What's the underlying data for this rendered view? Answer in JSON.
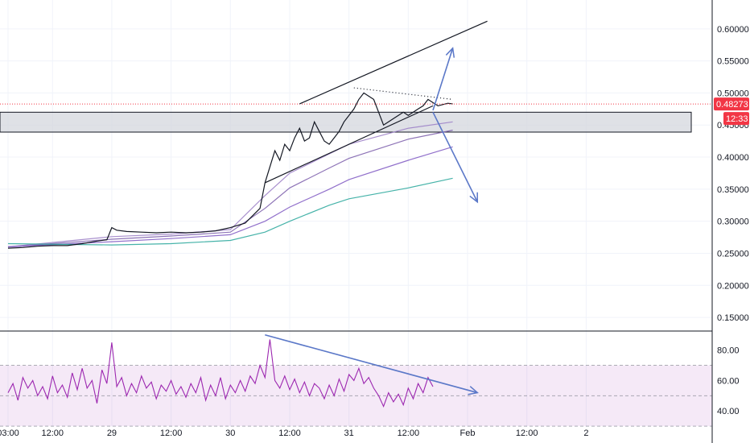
{
  "chart_data": [
    {
      "type": "line",
      "panel": "price",
      "title": "",
      "xlabel": "",
      "ylabel": "",
      "x_tick_labels": [
        "03:00",
        "12:00",
        "29",
        "12:00",
        "30",
        "12:00",
        "31",
        "12:00",
        "Feb",
        "12:00",
        "2"
      ],
      "y_tick_labels": [
        "0.15000",
        "0.20000",
        "0.25000",
        "0.30000",
        "0.35000",
        "0.40000",
        "0.45000",
        "0.50000",
        "0.55000",
        "0.60000"
      ],
      "ylim": [
        0.13,
        0.645
      ],
      "x_hours_from_first_tick": [
        0,
        9,
        21,
        33,
        45,
        57,
        69,
        81,
        93,
        105,
        117
      ],
      "current_price": {
        "value": 0.48273,
        "label": "0.48273",
        "countdown": "12:33",
        "color": "#f23645"
      },
      "zone": {
        "from": 0.439,
        "to": 0.47,
        "fill": "#d1d4dc"
      },
      "price_series": {
        "name": "",
        "color": "#131722",
        "x": [
          0,
          3,
          6,
          9,
          12,
          15,
          18,
          20,
          21,
          22,
          24,
          27,
          30,
          33,
          36,
          39,
          42,
          45,
          48,
          51,
          52,
          54,
          55,
          56,
          57,
          58,
          59,
          60,
          61,
          62,
          63,
          64,
          65,
          66,
          67,
          68,
          69,
          70,
          71,
          72,
          73,
          74,
          75,
          76,
          77,
          78,
          79,
          80,
          81,
          82,
          83,
          84,
          85,
          86,
          87,
          88,
          89,
          90
        ],
        "y": [
          0.258,
          0.259,
          0.261,
          0.262,
          0.262,
          0.265,
          0.269,
          0.271,
          0.29,
          0.286,
          0.284,
          0.283,
          0.282,
          0.283,
          0.282,
          0.283,
          0.285,
          0.29,
          0.297,
          0.32,
          0.36,
          0.41,
          0.395,
          0.42,
          0.41,
          0.43,
          0.445,
          0.425,
          0.43,
          0.455,
          0.44,
          0.425,
          0.42,
          0.43,
          0.44,
          0.455,
          0.465,
          0.475,
          0.49,
          0.5,
          0.495,
          0.49,
          0.47,
          0.45,
          0.455,
          0.46,
          0.465,
          0.47,
          0.465,
          0.47,
          0.475,
          0.48,
          0.49,
          0.485,
          0.48,
          0.482,
          0.484,
          0.483
        ]
      },
      "moving_averages": [
        {
          "name": "",
          "color": "#7a5caa",
          "x": [
            0,
            21,
            33,
            45,
            52,
            57,
            65,
            69,
            81,
            90
          ],
          "y": [
            0.26,
            0.272,
            0.277,
            0.283,
            0.32,
            0.352,
            0.383,
            0.398,
            0.428,
            0.442
          ]
        },
        {
          "name": "",
          "color": "#9a7cc5",
          "x": [
            0,
            21,
            33,
            45,
            52,
            57,
            65,
            69,
            81,
            90
          ],
          "y": [
            0.26,
            0.276,
            0.28,
            0.287,
            0.34,
            0.375,
            0.405,
            0.42,
            0.445,
            0.455
          ]
        },
        {
          "name": "",
          "color": "#7e57c2",
          "x": [
            0,
            21,
            33,
            45,
            52,
            57,
            65,
            69,
            81,
            90
          ],
          "y": [
            0.26,
            0.268,
            0.273,
            0.279,
            0.3,
            0.322,
            0.35,
            0.365,
            0.395,
            0.416
          ]
        },
        {
          "name": "",
          "color": "#26a69a",
          "x": [
            0,
            21,
            33,
            45,
            52,
            57,
            65,
            69,
            81,
            90
          ],
          "y": [
            0.265,
            0.263,
            0.265,
            0.27,
            0.283,
            0.3,
            0.325,
            0.335,
            0.352,
            0.367
          ]
        }
      ],
      "trendlines": [
        {
          "style": "solid",
          "color": "#131722",
          "x": [
            59,
            97
          ],
          "y": [
            0.483,
            0.612
          ]
        },
        {
          "style": "solid",
          "color": "#131722",
          "x": [
            52,
            86
          ],
          "y": [
            0.36,
            0.48
          ]
        },
        {
          "style": "dotted",
          "color": "#131722",
          "x": [
            70,
            90
          ],
          "y": [
            0.508,
            0.49
          ]
        },
        {
          "style": "arrow",
          "color": "#5b78c8",
          "x": [
            86,
            90
          ],
          "y": [
            0.473,
            0.57
          ]
        },
        {
          "style": "arrow",
          "color": "#5b78c8",
          "x": [
            86,
            95
          ],
          "y": [
            0.47,
            0.33
          ]
        }
      ]
    },
    {
      "type": "line",
      "panel": "rsi",
      "title": "",
      "y_tick_labels": [
        "40.00",
        "60.00",
        "80.00"
      ],
      "ylim": [
        20,
        92
      ],
      "bands": {
        "upper": 70,
        "middle": 50,
        "lower": 30
      },
      "rsi_series": {
        "name": "",
        "color": "#9c27b0",
        "x": [
          0,
          1,
          2,
          3,
          4,
          5,
          6,
          7,
          8,
          9,
          10,
          11,
          12,
          13,
          14,
          15,
          16,
          17,
          18,
          19,
          20,
          21,
          22,
          23,
          24,
          25,
          26,
          27,
          28,
          29,
          30,
          31,
          32,
          33,
          34,
          35,
          36,
          37,
          38,
          39,
          40,
          41,
          42,
          43,
          44,
          45,
          46,
          47,
          48,
          49,
          50,
          51,
          52,
          53,
          54,
          55,
          56,
          57,
          58,
          59,
          60,
          61,
          62,
          63,
          64,
          65,
          66,
          67,
          68,
          69,
          70,
          71,
          72,
          73,
          74,
          75,
          76,
          77,
          78,
          79,
          80,
          81,
          82,
          83,
          84,
          85,
          86
        ],
        "y": [
          52,
          58,
          47,
          62,
          55,
          60,
          50,
          56,
          48,
          63,
          52,
          57,
          49,
          65,
          54,
          68,
          55,
          60,
          45,
          67,
          58,
          85,
          56,
          62,
          50,
          58,
          52,
          63,
          55,
          59,
          48,
          57,
          53,
          60,
          51,
          56,
          49,
          58,
          52,
          62,
          47,
          57,
          50,
          62,
          48,
          57,
          52,
          60,
          53,
          63,
          58,
          70,
          62,
          87,
          60,
          55,
          63,
          54,
          61,
          52,
          59,
          50,
          58,
          55,
          48,
          57,
          50,
          61,
          53,
          64,
          60,
          68,
          58,
          62,
          55,
          50,
          43,
          52,
          46,
          51,
          44,
          55,
          48,
          58,
          52,
          62,
          56
        ]
      },
      "trendlines": [
        {
          "style": "arrow",
          "color": "#5b78c8",
          "x": [
            52,
            95
          ],
          "y": [
            90,
            52
          ]
        }
      ]
    }
  ]
}
